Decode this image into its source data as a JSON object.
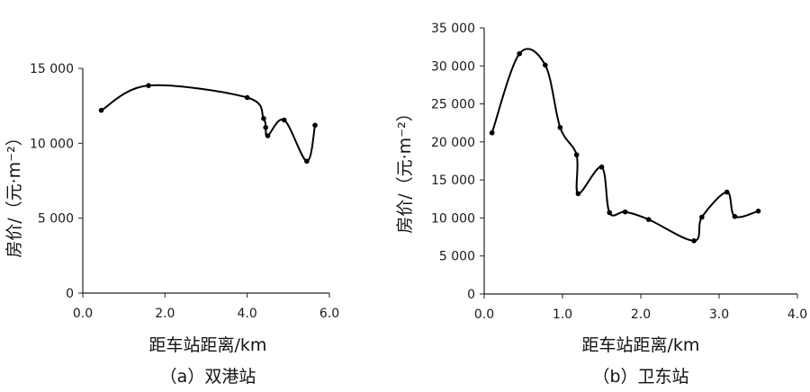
{
  "chart_data": [
    {
      "type": "line",
      "subtitle": "（a）双港站",
      "xlabel": "距车站距离/km",
      "ylabel": "房价/（元·m⁻²）",
      "xlim": [
        0,
        6
      ],
      "ylim": [
        0,
        15000
      ],
      "xticks": [
        "0.0",
        "2.0",
        "4.0",
        "6.0"
      ],
      "yticks": [
        "0",
        "5 000",
        "10 000",
        "15 000"
      ],
      "grid": false,
      "smooth": true,
      "series": [
        {
          "x": [
            0.45,
            1.6,
            4.0,
            4.4,
            4.45,
            4.5,
            4.9,
            5.45,
            5.65
          ],
          "y": [
            12200,
            13850,
            13050,
            11650,
            11050,
            10500,
            11550,
            8800,
            11200
          ]
        }
      ]
    },
    {
      "type": "line",
      "subtitle": "（b）卫东站",
      "xlabel": "距车站距离/km",
      "ylabel": "房价/（元·m⁻²）",
      "xlim": [
        0,
        4
      ],
      "ylim": [
        0,
        35000
      ],
      "xticks": [
        "0.0",
        "1.0",
        "2.0",
        "3.0",
        "4.0"
      ],
      "yticks": [
        "0",
        "5 000",
        "10 000",
        "15 000",
        "20 000",
        "25 000",
        "30 000",
        "35 000"
      ],
      "grid": false,
      "smooth": true,
      "series": [
        {
          "x": [
            0.1,
            0.45,
            0.78,
            0.97,
            1.18,
            1.2,
            1.5,
            1.6,
            1.8,
            2.1,
            2.68,
            2.78,
            3.1,
            3.2,
            3.5
          ],
          "y": [
            21200,
            31600,
            30100,
            21900,
            18300,
            13200,
            16700,
            10700,
            10800,
            9800,
            7000,
            10100,
            13400,
            10200,
            10900
          ]
        }
      ]
    }
  ]
}
